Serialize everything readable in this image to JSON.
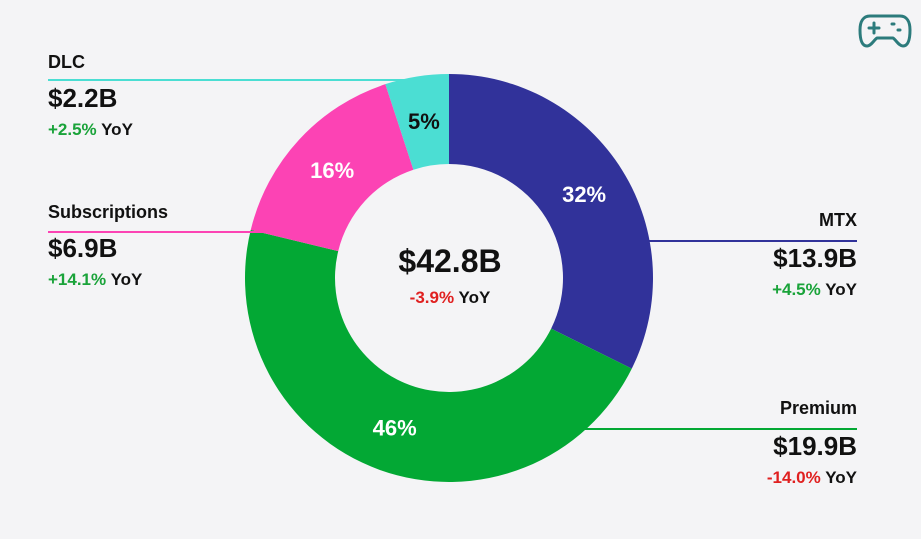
{
  "icon": "gamepad-icon",
  "center": {
    "total": "$42.8B",
    "change": "-3.9%",
    "change_suffix": "YoY",
    "change_color": "#e02020"
  },
  "chart_data": {
    "type": "pie",
    "donut": true,
    "slices": [
      {
        "name": "MTX",
        "percent": 32,
        "percent_label": "32%",
        "value_label": "$13.9B",
        "change": "+4.5%",
        "change_suffix": "YoY",
        "color": "#31329a",
        "change_color": "#1aa33a",
        "label_side": "right"
      },
      {
        "name": "Premium",
        "percent": 46,
        "percent_label": "46%",
        "value_label": "$19.9B",
        "change": "-14.0%",
        "change_suffix": "YoY",
        "color": "#03a834",
        "change_color": "#e02020",
        "label_side": "right"
      },
      {
        "name": "Subscriptions",
        "percent": 16,
        "percent_label": "16%",
        "value_label": "$6.9B",
        "change": "+14.1%",
        "change_suffix": "YoY",
        "color": "#fc43b4",
        "change_color": "#1aa33a",
        "label_side": "left"
      },
      {
        "name": "DLC",
        "percent": 5,
        "percent_label": "5%",
        "value_label": "$2.2B",
        "change": "+2.5%",
        "change_suffix": "YoY",
        "color": "#4bded3",
        "change_color": "#1aa33a",
        "label_side": "left"
      }
    ]
  }
}
